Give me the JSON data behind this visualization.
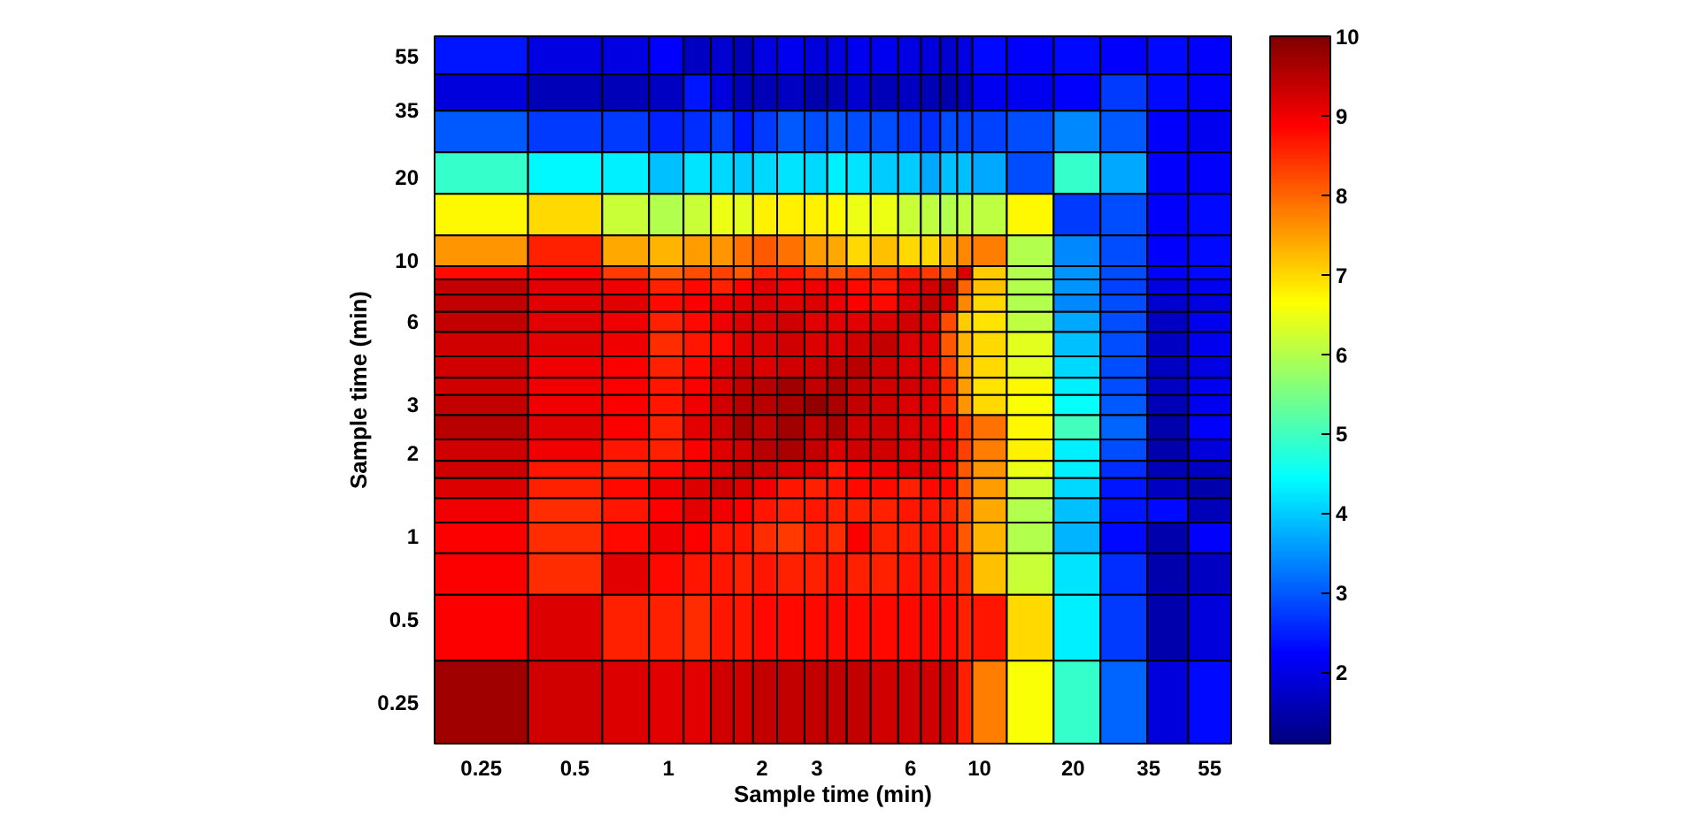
{
  "chart_data": {
    "type": "heatmap",
    "xlabel": "Sample time (min)",
    "ylabel": "Sample time (min)",
    "log": "xy",
    "x": [
      0.25,
      0.5,
      0.75,
      1,
      1.25,
      1.5,
      1.75,
      2,
      2.5,
      3,
      3.5,
      4,
      5,
      6,
      7,
      8,
      9,
      10,
      15,
      20,
      30,
      40,
      55
    ],
    "y": [
      55,
      40,
      30,
      20,
      15,
      10,
      9,
      8,
      7,
      6,
      5,
      4,
      3.5,
      3,
      2.5,
      2,
      1.75,
      1.5,
      1.25,
      1,
      0.75,
      0.5,
      0.25
    ],
    "xlim": [
      0.177,
      64.5
    ],
    "ylim": [
      0.177,
      64.5
    ],
    "xticks": [
      0.25,
      0.5,
      1,
      2,
      3,
      6,
      10,
      20,
      35,
      55
    ],
    "yticks": [
      0.25,
      0.5,
      1,
      2,
      3,
      6,
      10,
      20,
      35,
      55
    ],
    "clim": [
      1.1,
      10
    ],
    "cticks": [
      2,
      3,
      4,
      5,
      6,
      7,
      8,
      9,
      10
    ],
    "cells": [
      [
        2.4,
        2.0,
        2.0,
        2.2,
        1.7,
        1.8,
        1.6,
        2.0,
        2.1,
        1.9,
        2.0,
        2.1,
        2.1,
        2.0,
        1.9,
        1.8,
        2.0,
        2.3,
        2.2,
        2.3,
        2.2,
        2.3,
        2.2
      ],
      [
        1.9,
        1.6,
        1.6,
        1.7,
        2.4,
        1.9,
        1.6,
        1.6,
        1.7,
        1.5,
        1.6,
        1.8,
        1.6,
        1.7,
        1.6,
        1.5,
        1.7,
        2.1,
        2.1,
        2.2,
        2.7,
        2.3,
        2.2
      ],
      [
        3.0,
        2.7,
        2.7,
        2.5,
        2.6,
        2.8,
        2.4,
        2.7,
        3.0,
        2.9,
        3.0,
        2.9,
        2.9,
        2.7,
        2.6,
        2.9,
        2.8,
        2.8,
        2.9,
        3.4,
        3.0,
        2.2,
        2.1
      ],
      [
        4.9,
        4.4,
        4.3,
        3.9,
        4.2,
        4.1,
        4.0,
        4.1,
        4.2,
        4.1,
        4.3,
        4.2,
        4.0,
        4.0,
        3.7,
        3.9,
        3.9,
        3.7,
        2.9,
        4.9,
        3.7,
        2.2,
        2.2
      ],
      [
        6.7,
        7.0,
        6.2,
        6.0,
        6.2,
        6.5,
        6.4,
        6.8,
        6.8,
        6.8,
        6.7,
        6.5,
        6.5,
        6.2,
        6.1,
        6.0,
        6.1,
        6.1,
        6.7,
        2.7,
        2.9,
        2.2,
        2.3
      ],
      [
        7.6,
        8.6,
        7.4,
        7.3,
        7.5,
        7.6,
        7.9,
        8.1,
        7.9,
        7.5,
        7.4,
        7.0,
        7.2,
        7.0,
        7.0,
        7.3,
        7.7,
        7.8,
        6.0,
        3.4,
        2.9,
        2.2,
        2.3
      ],
      [
        8.8,
        8.9,
        8.4,
        8.0,
        8.2,
        8.3,
        8.1,
        8.6,
        8.7,
        8.3,
        8.1,
        8.3,
        8.4,
        8.6,
        8.4,
        8.1,
        9.2,
        7.1,
        6.0,
        3.5,
        2.9,
        2.2,
        2.3
      ],
      [
        9.4,
        9.1,
        9.0,
        8.6,
        8.8,
        8.6,
        8.9,
        9.1,
        9.0,
        9.0,
        9.0,
        8.8,
        8.7,
        9.1,
        9.3,
        9.4,
        8.0,
        7.2,
        6.0,
        3.5,
        2.8,
        2.0,
        2.1
      ],
      [
        9.4,
        9.1,
        9.1,
        8.8,
        8.9,
        9.0,
        9.1,
        9.2,
        9.1,
        9.2,
        9.0,
        8.9,
        8.8,
        9.2,
        9.4,
        9.2,
        7.7,
        7.0,
        6.0,
        3.4,
        2.9,
        1.8,
        2.0
      ],
      [
        9.4,
        9.1,
        9.0,
        8.6,
        8.8,
        9.0,
        9.2,
        9.2,
        9.3,
        9.1,
        9.1,
        9.1,
        9.2,
        9.3,
        9.2,
        8.2,
        7.1,
        6.9,
        6.1,
        3.7,
        2.9,
        1.7,
        2.1
      ],
      [
        9.3,
        9.1,
        9.0,
        8.5,
        8.7,
        8.8,
        9.1,
        9.2,
        9.3,
        9.2,
        9.2,
        9.3,
        9.4,
        9.2,
        9.1,
        8.1,
        7.3,
        7.0,
        6.4,
        3.9,
        2.9,
        1.7,
        2.1
      ],
      [
        9.3,
        9.0,
        8.9,
        8.6,
        8.8,
        9.1,
        9.3,
        9.2,
        9.3,
        9.3,
        9.4,
        9.5,
        9.3,
        9.2,
        9.1,
        8.3,
        7.4,
        7.0,
        6.4,
        4.1,
        2.9,
        1.7,
        2.0
      ],
      [
        9.3,
        9.0,
        8.9,
        8.7,
        8.9,
        9.2,
        9.4,
        9.5,
        9.7,
        9.4,
        9.6,
        9.4,
        9.3,
        9.3,
        9.2,
        8.5,
        7.5,
        6.9,
        6.7,
        4.3,
        2.9,
        1.7,
        2.1
      ],
      [
        9.4,
        9.0,
        8.9,
        8.7,
        9.0,
        9.3,
        9.5,
        9.5,
        9.6,
        9.8,
        9.6,
        9.4,
        9.3,
        9.2,
        9.1,
        8.5,
        7.6,
        7.0,
        6.6,
        4.5,
        3.0,
        1.6,
        2.1
      ],
      [
        9.5,
        9.1,
        8.9,
        8.6,
        9.1,
        9.3,
        9.6,
        9.4,
        9.7,
        9.4,
        9.6,
        9.3,
        9.3,
        9.2,
        9.1,
        8.9,
        8.3,
        7.9,
        6.7,
        5.0,
        3.1,
        1.5,
        2.2
      ],
      [
        9.3,
        9.0,
        8.7,
        8.6,
        8.9,
        9.2,
        9.3,
        9.5,
        9.6,
        9.4,
        9.2,
        9.3,
        9.3,
        9.2,
        9.2,
        9.0,
        8.3,
        7.8,
        6.8,
        4.3,
        2.9,
        1.5,
        1.9
      ],
      [
        9.3,
        8.7,
        8.6,
        8.8,
        9.0,
        9.2,
        9.4,
        9.3,
        9.2,
        9.1,
        8.7,
        8.9,
        9.0,
        9.1,
        9.1,
        8.8,
        8.1,
        7.6,
        6.5,
        4.3,
        2.6,
        1.6,
        1.7
      ],
      [
        9.2,
        8.6,
        8.8,
        9.0,
        9.2,
        9.3,
        9.2,
        9.0,
        8.7,
        8.6,
        8.7,
        8.8,
        8.8,
        8.6,
        8.8,
        8.8,
        8.1,
        7.5,
        6.2,
        4.1,
        2.4,
        1.7,
        1.5
      ],
      [
        9.0,
        8.5,
        8.7,
        8.9,
        9.1,
        9.0,
        8.9,
        8.7,
        8.6,
        8.7,
        8.6,
        8.6,
        8.6,
        8.7,
        8.7,
        8.6,
        8.2,
        7.4,
        6.0,
        3.9,
        2.4,
        2.3,
        1.6
      ],
      [
        8.9,
        8.5,
        8.8,
        9.0,
        8.9,
        8.7,
        8.7,
        8.5,
        8.4,
        8.6,
        8.5,
        8.9,
        8.6,
        8.6,
        8.7,
        8.7,
        8.1,
        7.3,
        6.0,
        3.8,
        2.3,
        1.5,
        2.2
      ],
      [
        8.9,
        8.5,
        9.1,
        8.8,
        8.7,
        8.7,
        8.6,
        8.7,
        8.6,
        8.6,
        8.7,
        8.6,
        8.6,
        8.7,
        8.7,
        8.7,
        8.5,
        7.2,
        6.2,
        4.2,
        2.6,
        1.5,
        1.7
      ],
      [
        8.9,
        9.2,
        8.6,
        8.6,
        8.5,
        8.7,
        8.7,
        8.8,
        8.8,
        8.8,
        8.8,
        8.8,
        8.8,
        8.8,
        8.8,
        8.8,
        8.6,
        8.7,
        7.0,
        4.3,
        2.7,
        1.5,
        1.9
      ],
      [
        9.7,
        9.3,
        9.2,
        9.1,
        9.1,
        9.3,
        9.3,
        9.4,
        9.4,
        9.4,
        9.4,
        9.4,
        9.3,
        9.3,
        9.3,
        9.3,
        8.6,
        7.8,
        6.6,
        4.9,
        3.1,
        1.9,
        2.3
      ]
    ]
  }
}
